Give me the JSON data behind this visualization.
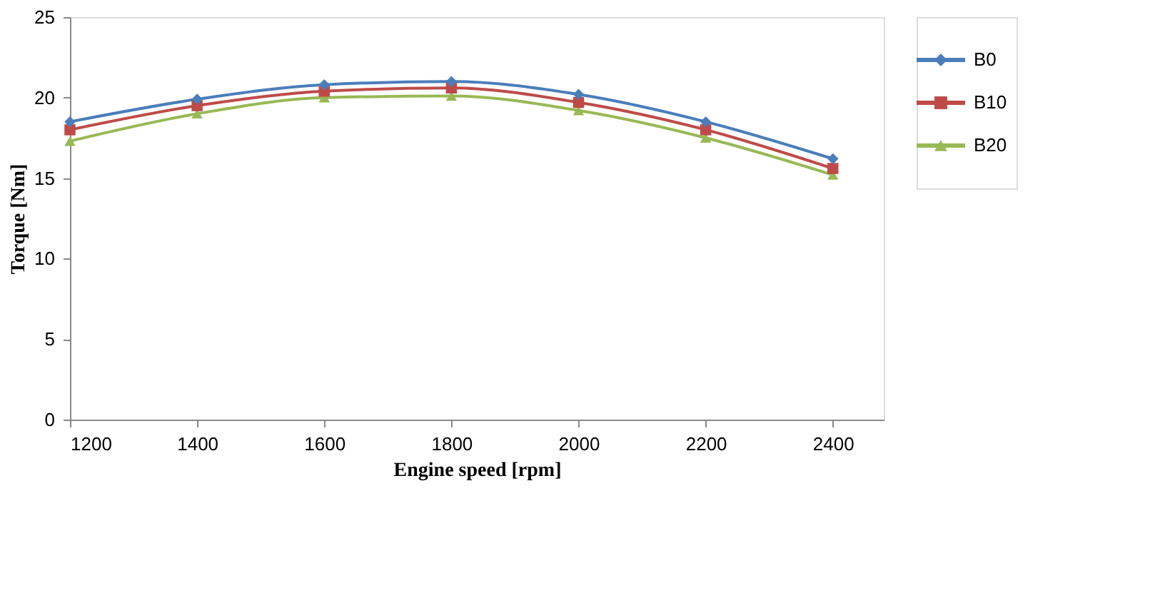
{
  "chart_data": {
    "type": "line",
    "xlabel": "Engine speed  [rpm]",
    "ylabel": "Torque [Nm]",
    "x": [
      1200,
      1400,
      1600,
      1800,
      2000,
      2200,
      2400
    ],
    "series": [
      {
        "name": "B0",
        "color": "#4a7ebb",
        "marker": "diamond",
        "values": [
          18.5,
          19.9,
          20.8,
          21.0,
          20.2,
          18.5,
          16.2
        ]
      },
      {
        "name": "B10",
        "color": "#be4b48",
        "marker": "square",
        "values": [
          18.0,
          19.5,
          20.4,
          20.6,
          19.7,
          18.0,
          15.6
        ]
      },
      {
        "name": "B20",
        "color": "#98b954",
        "marker": "triangle",
        "values": [
          17.3,
          19.0,
          20.0,
          20.1,
          19.2,
          17.5,
          15.2
        ]
      }
    ],
    "xlim": [
      1200,
      2480
    ],
    "xticks": [
      1200,
      1400,
      1600,
      1800,
      2000,
      2200,
      2400
    ],
    "ylim": [
      0,
      25
    ],
    "yticks": [
      0,
      5,
      10,
      15,
      20,
      25
    ],
    "grid": false,
    "legend": "right",
    "line_style": "solid"
  }
}
